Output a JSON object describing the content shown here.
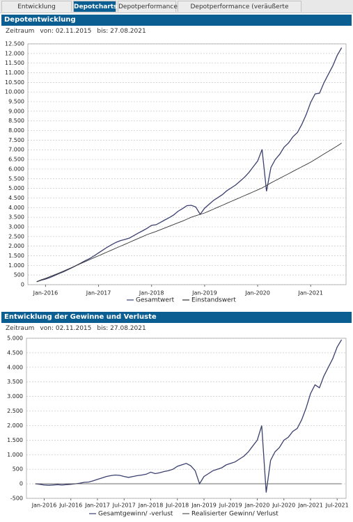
{
  "tabs": [
    "Entwicklung Depotwerte",
    "Depotcharts",
    "Depotperformance",
    "Depotperformance (veräußerte Positionen)"
  ],
  "panels": [
    {
      "title": "Depotentwicklung",
      "period_label": "Zeitraum",
      "from": "von: 02.11.2015",
      "to": "bis: 27.08.2021"
    },
    {
      "title": "Entwicklung der Gewinne und Verluste",
      "period_label": "Zeitraum",
      "from": "von: 02.11.2015",
      "to": "bis: 27.08.2021"
    }
  ],
  "chart_data": [
    {
      "type": "line",
      "x": [
        "2015-11",
        "2015-12",
        "2016-01",
        "2016-02",
        "2016-03",
        "2016-04",
        "2016-05",
        "2016-06",
        "2016-07",
        "2016-08",
        "2016-09",
        "2016-10",
        "2016-11",
        "2016-12",
        "2017-01",
        "2017-02",
        "2017-03",
        "2017-04",
        "2017-05",
        "2017-06",
        "2017-07",
        "2017-08",
        "2017-09",
        "2017-10",
        "2017-11",
        "2017-12",
        "2018-01",
        "2018-02",
        "2018-03",
        "2018-04",
        "2018-05",
        "2018-06",
        "2018-07",
        "2018-08",
        "2018-09",
        "2018-10",
        "2018-11",
        "2018-12",
        "2019-01",
        "2019-02",
        "2019-03",
        "2019-04",
        "2019-05",
        "2019-06",
        "2019-07",
        "2019-08",
        "2019-09",
        "2019-10",
        "2019-11",
        "2019-12",
        "2020-01",
        "2020-02",
        "2020-03",
        "2020-04",
        "2020-05",
        "2020-06",
        "2020-07",
        "2020-08",
        "2020-09",
        "2020-10",
        "2020-11",
        "2020-12",
        "2021-01",
        "2021-02",
        "2021-03",
        "2021-04",
        "2021-05",
        "2021-06",
        "2021-07",
        "2021-08"
      ],
      "series": [
        {
          "name": "Gesamtwert",
          "color": "#3b3f6e",
          "values": [
            150,
            230,
            290,
            370,
            470,
            570,
            660,
            770,
            880,
            1000,
            1120,
            1250,
            1360,
            1500,
            1650,
            1800,
            1950,
            2080,
            2200,
            2290,
            2350,
            2420,
            2550,
            2680,
            2800,
            2930,
            3080,
            3110,
            3230,
            3360,
            3480,
            3620,
            3810,
            3950,
            4100,
            4120,
            4030,
            3650,
            3970,
            4170,
            4370,
            4520,
            4670,
            4870,
            5020,
            5170,
            5370,
            5570,
            5820,
            6120,
            6420,
            7020,
            4850,
            6080,
            6500,
            6770,
            7140,
            7360,
            7680,
            7900,
            8320,
            8840,
            9460,
            9900,
            9940,
            10480,
            10920,
            11360,
            11900,
            12300
          ]
        },
        {
          "name": "Einstandswert",
          "color": "#333333",
          "values": [
            150,
            250,
            330,
            420,
            510,
            600,
            700,
            800,
            900,
            1000,
            1100,
            1200,
            1300,
            1400,
            1500,
            1600,
            1700,
            1800,
            1900,
            2000,
            2100,
            2200,
            2300,
            2400,
            2500,
            2600,
            2680,
            2760,
            2850,
            2940,
            3030,
            3120,
            3210,
            3300,
            3400,
            3500,
            3580,
            3650,
            3720,
            3820,
            3920,
            4020,
            4120,
            4220,
            4320,
            4420,
            4520,
            4620,
            4720,
            4820,
            4920,
            5020,
            5150,
            5280,
            5400,
            5520,
            5640,
            5760,
            5880,
            6000,
            6120,
            6240,
            6360,
            6500,
            6640,
            6780,
            6920,
            7060,
            7200,
            7350
          ]
        }
      ],
      "xlim": [
        "2015-09",
        "2021-09"
      ],
      "xticks": [
        {
          "value": "2016-01",
          "label": "Jan-2016"
        },
        {
          "value": "2017-01",
          "label": "Jan-2017"
        },
        {
          "value": "2018-01",
          "label": "Jan-2018"
        },
        {
          "value": "2019-01",
          "label": "Jan-2019"
        },
        {
          "value": "2020-01",
          "label": "Jan-2020"
        },
        {
          "value": "2021-01",
          "label": "Jan-2021"
        }
      ],
      "ylim": [
        0,
        12500
      ],
      "yticks": [
        0,
        500,
        {
          "value": 1000,
          "label": "1.000"
        },
        {
          "value": 1500,
          "label": "1.500"
        },
        {
          "value": 2000,
          "label": "2.000"
        },
        {
          "value": 2500,
          "label": "2.500"
        },
        {
          "value": 3000,
          "label": "3.000"
        },
        {
          "value": 3500,
          "label": "3.500"
        },
        {
          "value": 4000,
          "label": "4.000"
        },
        {
          "value": 4500,
          "label": "4.500"
        },
        {
          "value": 5000,
          "label": "5.000"
        },
        {
          "value": 5500,
          "label": "5.500"
        },
        {
          "value": 6000,
          "label": "6.000"
        },
        {
          "value": 6500,
          "label": "6.500"
        },
        {
          "value": 7000,
          "label": "7.000"
        },
        {
          "value": 7500,
          "label": "7.500"
        },
        {
          "value": 8000,
          "label": "8.000"
        },
        {
          "value": 8500,
          "label": "8.500"
        },
        {
          "value": 9000,
          "label": "9.000"
        },
        {
          "value": 9500,
          "label": "9.500"
        },
        {
          "value": 10000,
          "label": "10.000"
        },
        {
          "value": 10500,
          "label": "10.500"
        },
        {
          "value": 11000,
          "label": "11.000"
        },
        {
          "value": 11500,
          "label": "11.500"
        },
        {
          "value": 12000,
          "label": "12.000"
        },
        {
          "value": 12500,
          "label": "12.500"
        }
      ],
      "grid": true,
      "legend": "bottom"
    },
    {
      "type": "line",
      "x": [
        "2015-11",
        "2015-12",
        "2016-01",
        "2016-02",
        "2016-03",
        "2016-04",
        "2016-05",
        "2016-06",
        "2016-07",
        "2016-08",
        "2016-09",
        "2016-10",
        "2016-11",
        "2016-12",
        "2017-01",
        "2017-02",
        "2017-03",
        "2017-04",
        "2017-05",
        "2017-06",
        "2017-07",
        "2017-08",
        "2017-09",
        "2017-10",
        "2017-11",
        "2017-12",
        "2018-01",
        "2018-02",
        "2018-03",
        "2018-04",
        "2018-05",
        "2018-06",
        "2018-07",
        "2018-08",
        "2018-09",
        "2018-10",
        "2018-11",
        "2018-12",
        "2019-01",
        "2019-02",
        "2019-03",
        "2019-04",
        "2019-05",
        "2019-06",
        "2019-07",
        "2019-08",
        "2019-09",
        "2019-10",
        "2019-11",
        "2019-12",
        "2020-01",
        "2020-02",
        "2020-03",
        "2020-04",
        "2020-05",
        "2020-06",
        "2020-07",
        "2020-08",
        "2020-09",
        "2020-10",
        "2020-11",
        "2020-12",
        "2021-01",
        "2021-02",
        "2021-03",
        "2021-04",
        "2021-05",
        "2021-06",
        "2021-07",
        "2021-08"
      ],
      "series": [
        {
          "name": "Gesamtgewinn/ -verlust",
          "color": "#3b3f6e",
          "values": [
            0,
            -20,
            -40,
            -50,
            -40,
            -30,
            -40,
            -30,
            -20,
            0,
            20,
            50,
            60,
            100,
            150,
            200,
            250,
            280,
            300,
            290,
            250,
            220,
            250,
            280,
            300,
            330,
            400,
            350,
            380,
            420,
            450,
            500,
            600,
            650,
            700,
            620,
            450,
            0,
            250,
            350,
            450,
            500,
            550,
            650,
            700,
            750,
            850,
            950,
            1100,
            1300,
            1500,
            2000,
            -300,
            800,
            1100,
            1250,
            1500,
            1600,
            1800,
            1900,
            2200,
            2600,
            3100,
            3400,
            3300,
            3700,
            4000,
            4300,
            4700,
            4950
          ]
        },
        {
          "name": "Realisierter Gewinn/ Verlust",
          "color": "#555555",
          "values": [
            0,
            0,
            0,
            0,
            0,
            0,
            0,
            0,
            0,
            0,
            0,
            0,
            0,
            0,
            0,
            0,
            0,
            0,
            0,
            0,
            0,
            0,
            0,
            0,
            0,
            0,
            0,
            0,
            0,
            0,
            0,
            0,
            0,
            0,
            0,
            0,
            0,
            0,
            0,
            0,
            0,
            0,
            0,
            0,
            0,
            0,
            0,
            0,
            0,
            0,
            0,
            0,
            0,
            0,
            0,
            0,
            0,
            0,
            0,
            0,
            0,
            0,
            0,
            0,
            0,
            0,
            0,
            0,
            0,
            0
          ]
        }
      ],
      "xlim": [
        "2015-09",
        "2021-09"
      ],
      "xticks": [
        {
          "value": "2016-01",
          "label": "Jan-2016"
        },
        {
          "value": "2016-07",
          "label": "Jul-2016"
        },
        {
          "value": "2017-01",
          "label": "Jan-2017"
        },
        {
          "value": "2017-07",
          "label": "Jul-2017"
        },
        {
          "value": "2018-01",
          "label": "Jan-2018"
        },
        {
          "value": "2018-07",
          "label": "Jul-2018"
        },
        {
          "value": "2019-01",
          "label": "Jan-2019"
        },
        {
          "value": "2019-07",
          "label": "Jul-2019"
        },
        {
          "value": "2020-01",
          "label": "Jan-2020"
        },
        {
          "value": "2020-07",
          "label": "Jul-2020"
        },
        {
          "value": "2021-01",
          "label": "Jan-2021"
        },
        {
          "value": "2021-07",
          "label": "Jul-2021"
        }
      ],
      "ylim": [
        -500,
        5000
      ],
      "yticks": [
        -500,
        0,
        500,
        {
          "value": 1000,
          "label": "1.000"
        },
        {
          "value": 1500,
          "label": "1.500"
        },
        {
          "value": 2000,
          "label": "2.000"
        },
        {
          "value": 2500,
          "label": "2.500"
        },
        {
          "value": 3000,
          "label": "3.000"
        },
        {
          "value": 3500,
          "label": "3.500"
        },
        {
          "value": 4000,
          "label": "4.000"
        },
        {
          "value": 4500,
          "label": "4.500"
        },
        {
          "value": 5000,
          "label": "5.000"
        }
      ],
      "grid": true,
      "legend": "bottom"
    }
  ]
}
